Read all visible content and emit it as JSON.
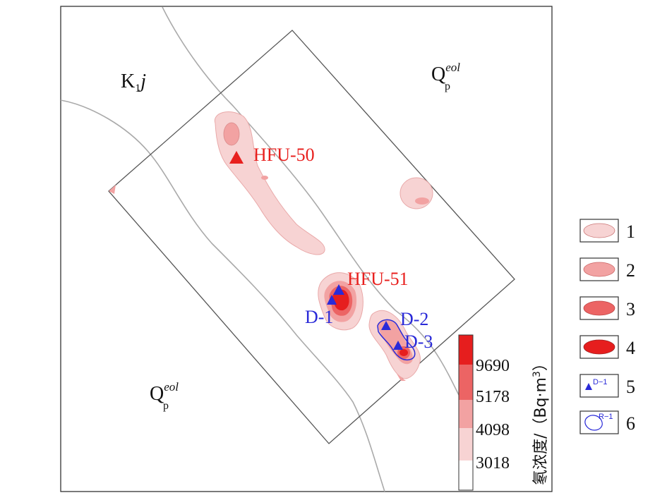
{
  "units": {
    "k1j": {
      "main": "K",
      "sub": "1",
      "tail": "j"
    },
    "qp_top": {
      "main": "Q",
      "sub": "p",
      "sup": "eol"
    },
    "qp_bottom": {
      "main": "Q",
      "sub": "p",
      "sup": "eol"
    }
  },
  "points": {
    "hfu50": "HFU-50",
    "hfu51": "HFU-51",
    "d1": "D-1",
    "d2": "D-2",
    "d3": "D-3"
  },
  "scale": {
    "title": "氡浓度/（Bq·m",
    "title_sup": "3",
    "title_close": "）",
    "values": [
      "9690",
      "5178",
      "4098",
      "3018"
    ]
  },
  "legend": {
    "items": [
      {
        "num": "1",
        "icon": "light-pink-ellipse-icon",
        "color": "#f7d3d3"
      },
      {
        "num": "2",
        "icon": "pink-ellipse-icon",
        "color": "#f2a2a2"
      },
      {
        "num": "3",
        "icon": "salmon-ellipse-icon",
        "color": "#ec6464"
      },
      {
        "num": "4",
        "icon": "red-ellipse-icon",
        "color": "#e61e1e"
      },
      {
        "num": "5",
        "icon": "blue-triangle-icon",
        "label": "D−1"
      },
      {
        "num": "6",
        "icon": "blue-outline-contour-icon",
        "label": "R−1"
      }
    ]
  },
  "colors": {
    "level1": "#f7d3d3",
    "level2": "#f2a2a2",
    "level3": "#ec6464",
    "level4": "#e61e1e",
    "blue": "#2a2ad8",
    "red_text": "#e8201e",
    "boundary_line": "#aaaaaa"
  }
}
